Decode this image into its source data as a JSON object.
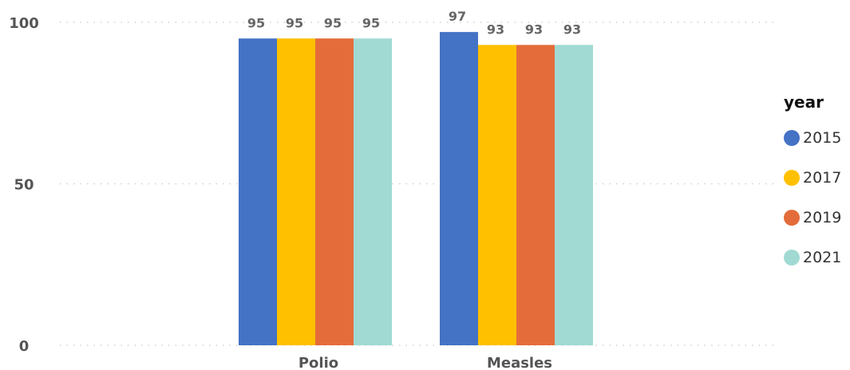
{
  "chart_data": {
    "type": "bar",
    "categories": [
      "Polio",
      "Measles"
    ],
    "series": [
      {
        "name": "2015",
        "values": [
          95,
          97
        ],
        "color": "#4472C4"
      },
      {
        "name": "2017",
        "values": [
          95,
          93
        ],
        "color": "#FFC000"
      },
      {
        "name": "2019",
        "values": [
          95,
          93
        ],
        "color": "#E46C3A"
      },
      {
        "name": "2021",
        "values": [
          95,
          93
        ],
        "color": "#A0DAD3"
      }
    ],
    "title": "",
    "xlabel": "",
    "ylabel": "",
    "ylim": [
      0,
      100
    ],
    "yticks": [
      0,
      50,
      100
    ],
    "grid": true,
    "legend": {
      "title": "year",
      "position": "right"
    }
  }
}
